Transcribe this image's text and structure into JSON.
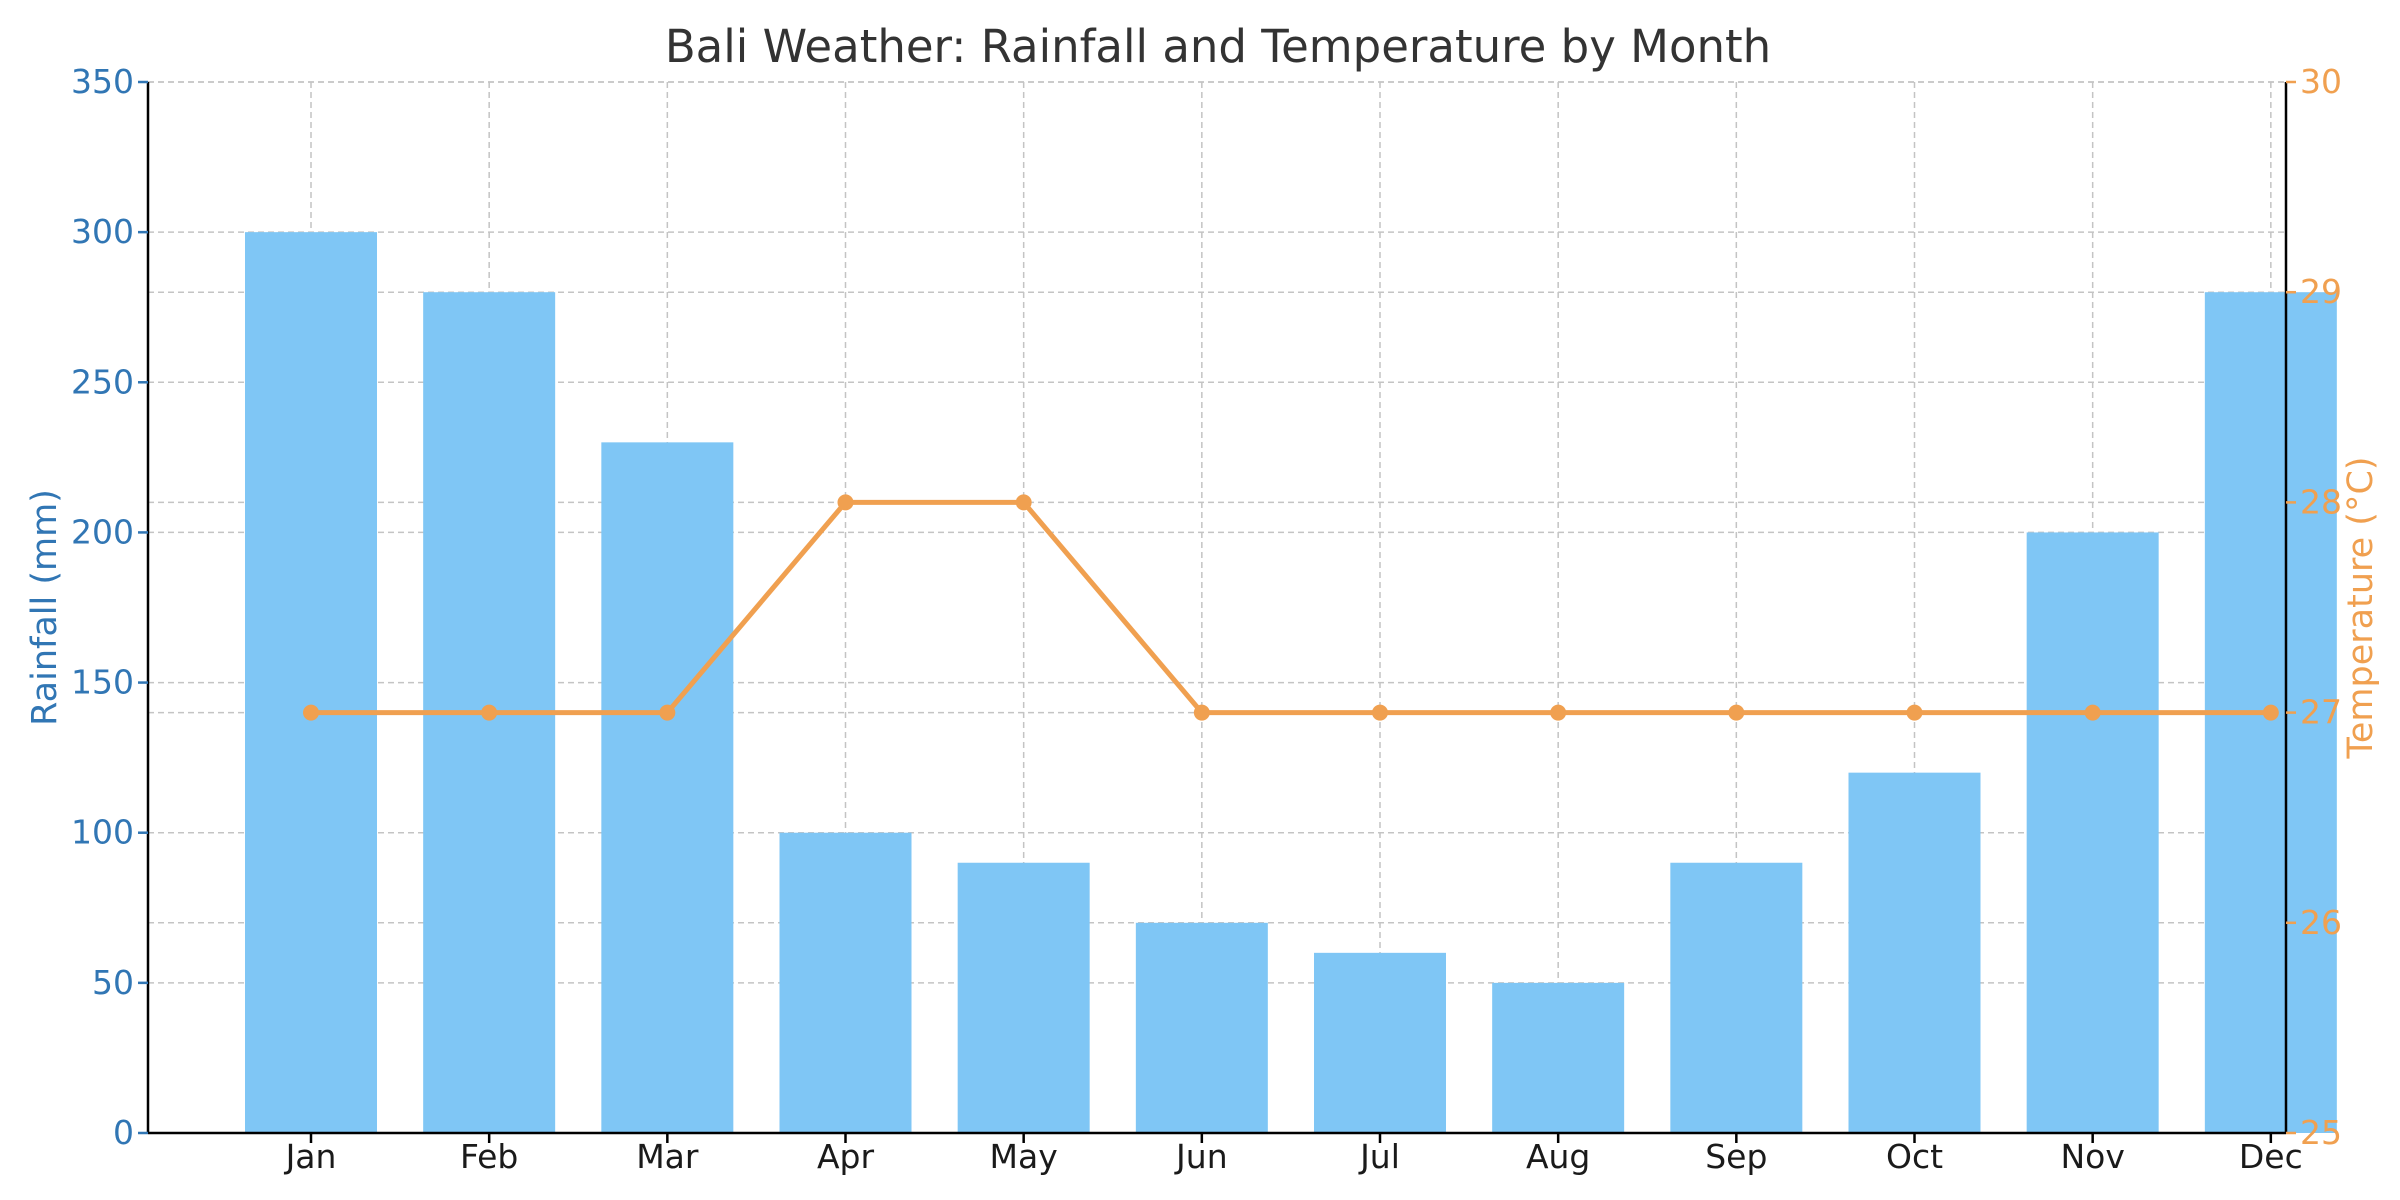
{
  "chart_data": {
    "type": "bar",
    "title": "Bali Weather: Rainfall and Temperature by Month",
    "categories": [
      "Jan",
      "Feb",
      "Mar",
      "Apr",
      "May",
      "Jun",
      "Jul",
      "Aug",
      "Sep",
      "Oct",
      "Nov",
      "Dec"
    ],
    "series": [
      {
        "name": "Rainfall (mm)",
        "type": "bar",
        "axis": "left",
        "color": "#7fc6f5",
        "values": [
          300,
          280,
          230,
          100,
          90,
          70,
          60,
          50,
          90,
          120,
          200,
          280
        ]
      },
      {
        "name": "Temperature (°C)",
        "type": "line",
        "axis": "right",
        "color": "#f0a050",
        "values": [
          27,
          27,
          27,
          28,
          28,
          27,
          27,
          27,
          27,
          27,
          27,
          27
        ]
      }
    ],
    "y_left": {
      "label": "Rainfall (mm)",
      "range": [
        0,
        350
      ],
      "ticks": [
        0,
        50,
        100,
        150,
        200,
        250,
        300,
        350
      ],
      "color": "#3176b4"
    },
    "y_right": {
      "label": "Temperature (°C)",
      "range": [
        25,
        30
      ],
      "ticks": [
        25,
        26,
        27,
        28,
        29,
        30
      ],
      "color": "#f0a050"
    },
    "grid": true
  }
}
